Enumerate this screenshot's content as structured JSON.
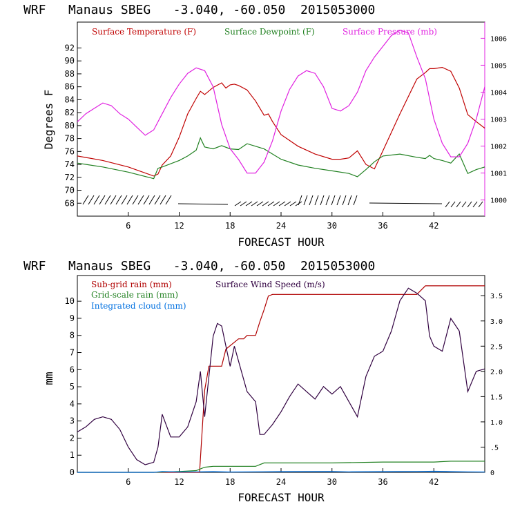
{
  "chart_data": [
    {
      "type": "line",
      "title": "WRF   Manaus SBEG   -3.040, -60.050  2015053000",
      "xlabel": "FORECAST HOUR",
      "ylabel": "Degrees F",
      "xlim": [
        0,
        48
      ],
      "ylim": [
        66,
        96
      ],
      "y2lim": [
        999.4,
        1006.6
      ],
      "xticks": [
        "6",
        "12",
        "18",
        "24",
        "30",
        "36",
        "42"
      ],
      "xtick_values": [
        6,
        12,
        18,
        24,
        30,
        36,
        42
      ],
      "yticks": [
        "68",
        "70",
        "72",
        "74",
        "76",
        "78",
        "80",
        "82",
        "84",
        "86",
        "88",
        "90",
        "92"
      ],
      "ytick_values": [
        68,
        70,
        72,
        74,
        76,
        78,
        80,
        82,
        84,
        86,
        88,
        90,
        92
      ],
      "y2ticks": [
        "1000",
        "1001",
        "1002",
        "1003",
        "1004",
        "1005",
        "1006"
      ],
      "y2tick_values": [
        1000,
        1001,
        1002,
        1003,
        1004,
        1005,
        1006
      ],
      "legend": [
        "Surface Temperature (F)",
        "Surface Dewpoint (F)",
        "Surface Pressure (mb)"
      ],
      "colors": {
        "temperature": "#c00000",
        "dewpoint": "#208020",
        "pressure": "#e020e0",
        "wind_barbs": "#000000"
      },
      "series": [
        {
          "name": "Surface Temperature (F)",
          "axis": "left",
          "x": [
            0,
            3,
            6,
            9,
            9.5,
            10,
            11,
            12,
            13,
            14,
            14.5,
            15,
            16,
            17,
            17.5,
            18,
            18.5,
            19,
            20,
            21,
            22,
            22.5,
            23,
            24,
            26,
            28,
            30,
            31,
            32,
            33,
            34,
            35,
            36,
            38,
            40,
            41,
            41.5,
            42,
            43,
            44,
            45,
            46,
            47,
            48
          ],
          "y": [
            75.3,
            74.6,
            73.6,
            72.2,
            72.5,
            73.9,
            75.3,
            78.2,
            81.8,
            84.2,
            85.3,
            84.8,
            85.9,
            86.6,
            85.8,
            86.3,
            86.4,
            86.2,
            85.5,
            83.8,
            81.6,
            81.8,
            80.6,
            78.6,
            76.8,
            75.6,
            74.8,
            74.8,
            75.0,
            76.1,
            74.0,
            73.3,
            76.1,
            81.8,
            87.2,
            88.2,
            88.8,
            88.8,
            89.0,
            88.4,
            85.8,
            81.7,
            80.6,
            79.6
          ]
        },
        {
          "name": "Surface Dewpoint (F)",
          "axis": "left",
          "x": [
            0,
            3,
            6,
            9,
            9.5,
            10,
            12,
            13,
            14,
            14.5,
            15,
            16,
            17,
            18,
            19,
            20,
            21,
            22,
            23,
            24,
            26,
            28,
            30,
            32,
            33,
            34,
            35,
            36,
            38,
            40,
            41,
            41.5,
            42,
            43,
            44,
            45,
            46,
            47,
            48
          ],
          "y": [
            74.2,
            73.6,
            72.8,
            71.8,
            73.4,
            73.6,
            74.6,
            75.3,
            76.2,
            78.1,
            76.7,
            76.4,
            76.9,
            76.4,
            76.3,
            77.2,
            76.8,
            76.4,
            75.6,
            74.8,
            73.9,
            73.4,
            73.0,
            72.6,
            72.1,
            73.2,
            74.4,
            75.3,
            75.6,
            75.1,
            74.9,
            75.4,
            74.9,
            74.6,
            74.2,
            75.6,
            72.6,
            73.2,
            73.6
          ]
        },
        {
          "name": "Surface Pressure (mb)",
          "axis": "right",
          "x": [
            0,
            1,
            2,
            3,
            4,
            5,
            6,
            7,
            8,
            9,
            10,
            11,
            12,
            13,
            14,
            15,
            16,
            17,
            18,
            19,
            20,
            21,
            22,
            23,
            24,
            25,
            26,
            27,
            28,
            29,
            30,
            31,
            32,
            33,
            34,
            35,
            36,
            37,
            38,
            39,
            40,
            41,
            42,
            43,
            44,
            45,
            46,
            47,
            48
          ],
          "y": [
            1002.9,
            1003.2,
            1003.4,
            1003.6,
            1003.5,
            1003.2,
            1003.0,
            1002.7,
            1002.4,
            1002.6,
            1003.2,
            1003.8,
            1004.3,
            1004.7,
            1004.9,
            1004.8,
            1004.2,
            1002.8,
            1001.9,
            1001.5,
            1001.0,
            1001.0,
            1001.4,
            1002.2,
            1003.3,
            1004.1,
            1004.6,
            1004.8,
            1004.7,
            1004.2,
            1003.4,
            1003.3,
            1003.5,
            1004.0,
            1004.8,
            1005.3,
            1005.7,
            1006.1,
            1006.3,
            1006.2,
            1005.3,
            1004.5,
            1003.0,
            1002.1,
            1001.6,
            1001.6,
            1002.1,
            1003.0,
            1004.2
          ]
        }
      ]
    },
    {
      "type": "line",
      "title": "WRF   Manaus SBEG   -3.040, -60.050  2015053000",
      "xlabel": "FORECAST HOUR",
      "ylabel": "mm",
      "xlim": [
        0,
        48
      ],
      "ylim": [
        0,
        11.5
      ],
      "y2lim": [
        0,
        3.9
      ],
      "xticks": [
        "6",
        "12",
        "18",
        "24",
        "30",
        "36",
        "42"
      ],
      "xtick_values": [
        6,
        12,
        18,
        24,
        30,
        36,
        42
      ],
      "yticks": [
        "0",
        "1",
        "2",
        "3",
        "4",
        "5",
        "6",
        "7",
        "8",
        "9",
        "10"
      ],
      "ytick_values": [
        0,
        1,
        2,
        3,
        4,
        5,
        6,
        7,
        8,
        9,
        10
      ],
      "y2ticks": [
        "0",
        ".5",
        "1.0",
        "1.5",
        "2.0",
        "2.5",
        "3.0",
        "3.5"
      ],
      "y2tick_values": [
        0,
        0.5,
        1.0,
        1.5,
        2.0,
        2.5,
        3.0,
        3.5
      ],
      "legend": [
        "Sub-grid rain (mm)",
        "Surface Wind Speed (m/s)",
        "Grid-scale rain (mm)",
        "Integrated cloud (mm)"
      ],
      "colors": {
        "subgrid": "#b00000",
        "wind": "#300040",
        "gridscale": "#208020",
        "cloud": "#0070e0"
      },
      "series": [
        {
          "name": "Sub-grid rain (mm)",
          "axis": "left",
          "x": [
            0,
            14.4,
            15,
            15.5,
            16,
            16.5,
            17,
            17.5,
            19,
            19.6,
            20,
            21,
            21.5,
            22,
            22.5,
            23,
            40,
            41,
            48
          ],
          "y": [
            0,
            0,
            4.8,
            6.2,
            6.2,
            6.2,
            6.2,
            7.2,
            7.8,
            7.8,
            8.0,
            8.0,
            8.8,
            9.5,
            10.3,
            10.4,
            10.4,
            10.9,
            10.9
          ]
        },
        {
          "name": "Grid-scale rain (mm)",
          "axis": "left",
          "x": [
            0,
            9,
            12,
            14,
            15,
            16,
            20,
            21,
            22,
            24,
            30,
            36,
            42,
            44,
            48
          ],
          "y": [
            0,
            0,
            0.05,
            0.1,
            0.3,
            0.35,
            0.35,
            0.35,
            0.55,
            0.55,
            0.55,
            0.6,
            0.6,
            0.65,
            0.65
          ]
        },
        {
          "name": "Integrated cloud (mm)",
          "axis": "left",
          "x": [
            0,
            9,
            10,
            12,
            14,
            16,
            18,
            24,
            30,
            32,
            36,
            40,
            42,
            44,
            46,
            48
          ],
          "y": [
            0,
            0,
            0.05,
            0.02,
            0.03,
            0.04,
            0.02,
            0.04,
            0.05,
            0.03,
            0.04,
            0.05,
            0.06,
            0.04,
            0.03,
            0.02
          ]
        },
        {
          "name": "Surface Wind Speed (m/s)",
          "axis": "right",
          "x": [
            0,
            1,
            2,
            3,
            4,
            5,
            6,
            7,
            8,
            9,
            9.5,
            10,
            11,
            12,
            13,
            14,
            14.5,
            15,
            16,
            16.5,
            17,
            18,
            18.5,
            19,
            20,
            21,
            21.5,
            22,
            23,
            24,
            25,
            26,
            27,
            28,
            29,
            30,
            31,
            32,
            33,
            34,
            35,
            36,
            37,
            38,
            39,
            40,
            41,
            41.5,
            42,
            43,
            44,
            45,
            46,
            47,
            48
          ],
          "y": [
            0.8,
            0.9,
            1.05,
            1.1,
            1.05,
            0.85,
            0.5,
            0.25,
            0.15,
            0.2,
            0.5,
            1.15,
            0.7,
            0.7,
            0.9,
            1.4,
            2.0,
            1.1,
            2.7,
            2.95,
            2.9,
            2.1,
            2.5,
            2.2,
            1.6,
            1.4,
            0.75,
            0.75,
            0.95,
            1.2,
            1.5,
            1.75,
            1.6,
            1.45,
            1.7,
            1.55,
            1.7,
            1.4,
            1.1,
            1.9,
            2.3,
            2.4,
            2.8,
            3.4,
            3.65,
            3.55,
            3.4,
            2.7,
            2.5,
            2.4,
            3.05,
            2.8,
            1.6,
            2.0,
            2.05
          ]
        }
      ]
    }
  ]
}
